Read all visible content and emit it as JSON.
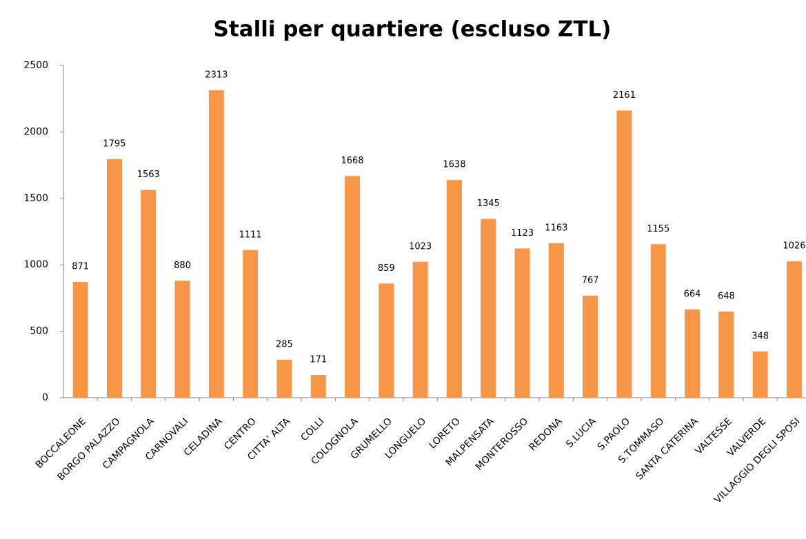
{
  "chart_data": {
    "type": "bar",
    "title": "Stalli per quartiere (escluso ZTL)",
    "categories": [
      "BOCCALEONE",
      "BORGO PALAZZO",
      "CAMPAGNOLA",
      "CARNOVALI",
      "CELADINA",
      "CENTRO",
      "CITTA' ALTA",
      "COLLI",
      "COLOGNOLA",
      "GRUMELLO",
      "LONGUELO",
      "LORETO",
      "MALPENSATA",
      "MONTEROSSO",
      "REDONA",
      "S.LUCIA",
      "S.PAOLO",
      "S.TOMMASO",
      "SANTA CATERINA",
      "VALTESSE",
      "VALVERDE",
      "VILLAGGIO DEGLI SPOSI"
    ],
    "values": [
      871,
      1795,
      1563,
      880,
      2313,
      1111,
      285,
      171,
      1668,
      859,
      1023,
      1638,
      1345,
      1123,
      1163,
      767,
      2161,
      1155,
      664,
      648,
      348,
      1026
    ],
    "color": "#f79646",
    "ylim": [
      0,
      2500
    ],
    "yticks": [
      0,
      500,
      1000,
      1500,
      2000,
      2500
    ],
    "grid": false
  }
}
